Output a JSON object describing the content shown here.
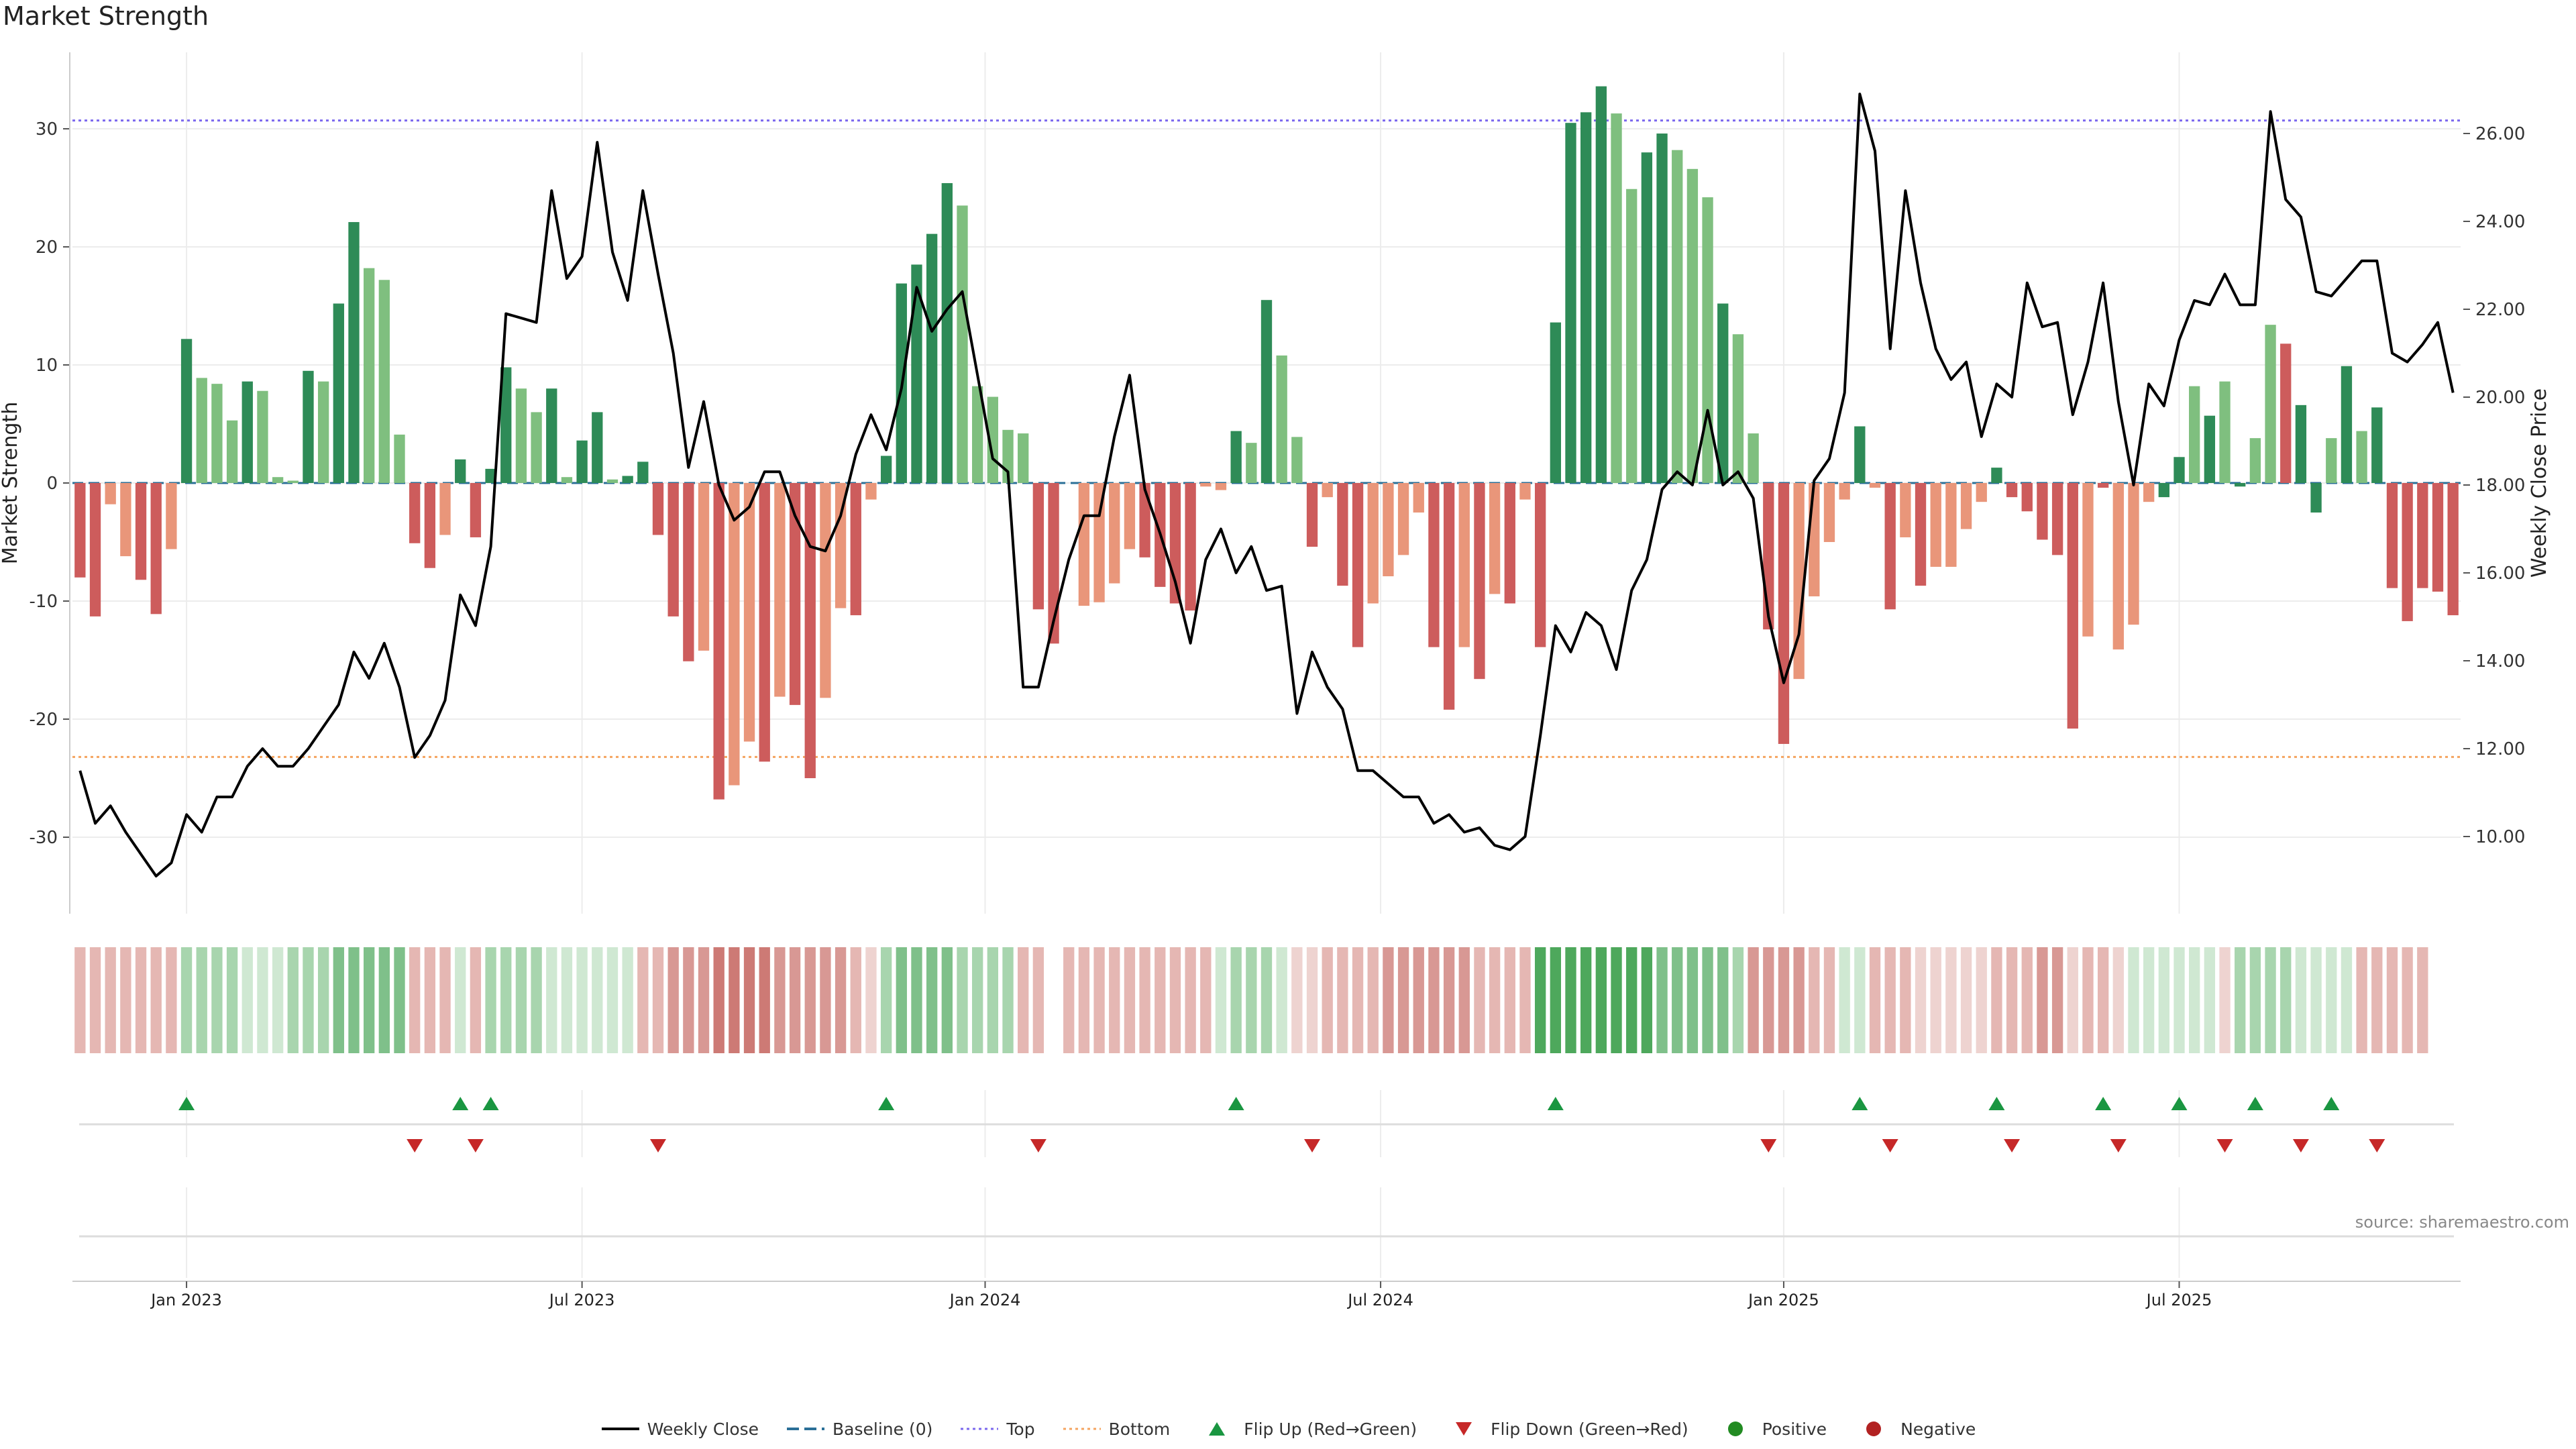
{
  "title": "Market Strength",
  "source": "source: sharemaestro.com",
  "colors": {
    "strong_pos": "#2e8b57",
    "weak_pos": "#7fbf7f",
    "strong_neg": "#cd5c5c",
    "weak_neg": "#e9967a",
    "price": "#000000",
    "baseline": "#2a6f97",
    "top": "#7b68ee",
    "bottom": "#f4a460",
    "flip_up": "#1a9641",
    "flip_down": "#c62828"
  },
  "legend": [
    {
      "label": "Weekly Close",
      "kind": "line",
      "color": "#000000"
    },
    {
      "label": "Baseline (0)",
      "kind": "dash",
      "color": "#2a6f97"
    },
    {
      "label": "Top",
      "kind": "dot",
      "color": "#7b68ee"
    },
    {
      "label": "Bottom",
      "kind": "dot",
      "color": "#f4a460"
    },
    {
      "label": "Flip Up (Red→Green)",
      "kind": "tri-up",
      "color": "#1a9641"
    },
    {
      "label": "Flip Down (Green→Red)",
      "kind": "tri-down",
      "color": "#c62828"
    },
    {
      "label": "Positive",
      "kind": "circle",
      "color": "#228b22"
    },
    {
      "label": "Negative",
      "kind": "circle",
      "color": "#b22222"
    }
  ],
  "chart_data": {
    "type": "bar+line",
    "title": "Market Strength",
    "ylabel_left": "Market Strength",
    "ylabel_right": "Weekly Close Price",
    "ylim_left": [
      -36.5,
      36.5
    ],
    "ylim_right": [
      8.3,
      27.8
    ],
    "yticks_left": [
      30,
      20,
      10,
      0,
      -10,
      -20,
      -30
    ],
    "yticks_right": [
      "26.00",
      "24.00",
      "22.00",
      "20.00",
      "18.00",
      "16.00",
      "14.00",
      "12.00",
      "10.00"
    ],
    "xticks": [
      {
        "label": "Jan 2023",
        "week": 7
      },
      {
        "label": "Jul 2023",
        "week": 33
      },
      {
        "label": "Jan 2024",
        "week": 59.5
      },
      {
        "label": "Jul 2024",
        "week": 85.5
      },
      {
        "label": "Jan 2025",
        "week": 112
      },
      {
        "label": "Jul 2025",
        "week": 138
      }
    ],
    "top_level": 30.7,
    "bottom_level": -23.2,
    "baseline": 0,
    "strength": [
      -8,
      -11.3,
      -1.8,
      -6.2,
      -8.2,
      -11.1,
      -5.6,
      12.2,
      8.9,
      8.4,
      5.3,
      8.6,
      7.8,
      0.5,
      0.2,
      9.5,
      8.6,
      15.2,
      22.1,
      18.2,
      17.2,
      4.1,
      -5.1,
      -7.2,
      -4.4,
      2,
      -4.6,
      1.2,
      9.8,
      8,
      6,
      8,
      0.5,
      3.6,
      6,
      0.3,
      0.6,
      1.8,
      -4.4,
      -11.3,
      -15.1,
      -14.2,
      -26.8,
      -25.6,
      -21.9,
      -23.6,
      -18.1,
      -18.8,
      -25,
      -18.2,
      -10.6,
      -11.2,
      -1.4,
      2.3,
      16.9,
      18.5,
      21.1,
      25.4,
      23.5,
      8.2,
      7.3,
      4.5,
      4.2,
      -10.7,
      -13.6,
      null,
      -10.4,
      -10.1,
      -8.5,
      -5.6,
      -6.3,
      -8.8,
      -10.2,
      -10.8,
      -0.3,
      -0.6,
      4.4,
      3.4,
      15.5,
      10.8,
      3.9,
      -5.4,
      -1.2,
      -8.7,
      -13.9,
      -10.2,
      -7.9,
      -6.1,
      -2.5,
      -13.9,
      -19.2,
      -13.9,
      -16.6,
      -9.4,
      -10.2,
      -1.4,
      -13.9,
      13.6,
      30.5,
      31.4,
      33.6,
      31.3,
      24.9,
      28,
      29.6,
      28.2,
      26.6,
      24.2,
      15.2,
      12.6,
      4.2,
      -12.4,
      -22.1,
      -16.6,
      -9.6,
      -5,
      -1.4,
      4.8,
      -0.4,
      -10.7,
      -4.6,
      -8.7,
      -7.1,
      -7.1,
      -3.9,
      -1.6,
      1.3,
      -1.2,
      -2.4,
      -4.8,
      -6.1,
      -20.8,
      -13,
      -0.4,
      -14.1,
      -12,
      -1.6,
      -1.2,
      2.2,
      8.2,
      5.7,
      8.6,
      -0.3,
      3.8,
      13.4,
      11.8,
      6.6,
      -2.5,
      3.8,
      9.9,
      4.4,
      6.4,
      -8.9,
      -11.7,
      -8.9,
      -9.2,
      -11.2
    ],
    "strength_class": [
      "N",
      "N",
      "W",
      "W",
      "N",
      "N",
      "W",
      "S",
      "W",
      "W",
      "W",
      "S",
      "W",
      "W",
      "W",
      "S",
      "W",
      "S",
      "S",
      "W",
      "W",
      "W",
      "N",
      "N",
      "W",
      "S",
      "N",
      "S",
      "S",
      "W",
      "W",
      "S",
      "W",
      "S",
      "S",
      "W",
      "S",
      "S",
      "N",
      "N",
      "N",
      "W",
      "N",
      "W",
      "W",
      "N",
      "W",
      "N",
      "N",
      "W",
      "W",
      "N",
      "W",
      "S",
      "S",
      "S",
      "S",
      "S",
      "W",
      "W",
      "W",
      "W",
      "W",
      "N",
      "N",
      "X",
      "W",
      "W",
      "W",
      "W",
      "N",
      "N",
      "N",
      "N",
      "W",
      "W",
      "S",
      "W",
      "S",
      "W",
      "W",
      "N",
      "W",
      "N",
      "N",
      "W",
      "W",
      "W",
      "W",
      "N",
      "N",
      "W",
      "N",
      "W",
      "N",
      "W",
      "N",
      "S",
      "S",
      "S",
      "S",
      "W",
      "W",
      "S",
      "S",
      "W",
      "W",
      "W",
      "S",
      "W",
      "W",
      "N",
      "N",
      "W",
      "W",
      "W",
      "W",
      "S",
      "W",
      "N",
      "W",
      "N",
      "W",
      "W",
      "W",
      "W",
      "S",
      "N",
      "N",
      "N",
      "N",
      "N",
      "W",
      "N",
      "W",
      "W",
      "W",
      "S",
      "S",
      "W",
      "S",
      "W",
      "S",
      "W",
      "W",
      "N",
      "S",
      "S",
      "W",
      "S",
      "W",
      "S",
      "N",
      "N",
      "N",
      "N",
      "N"
    ],
    "price": [
      11.5,
      10.3,
      10.7,
      10.1,
      9.6,
      9.1,
      9.4,
      10.5,
      10.1,
      10.9,
      10.9,
      11.6,
      12,
      11.6,
      11.6,
      12,
      12.5,
      13,
      14.2,
      13.6,
      14.4,
      13.4,
      11.8,
      12.3,
      13.1,
      15.5,
      14.8,
      16.6,
      21.9,
      21.8,
      21.7,
      24.7,
      22.7,
      23.2,
      25.8,
      23.3,
      22.2,
      24.7,
      22.8,
      21,
      18.4,
      19.9,
      18,
      17.2,
      17.5,
      18.3,
      18.3,
      17.3,
      16.6,
      16.5,
      17.3,
      18.7,
      19.6,
      18.8,
      20.2,
      22.5,
      21.5,
      22,
      22.4,
      20.5,
      18.6,
      18.3,
      13.4,
      13.4,
      14.9,
      16.3,
      17.3,
      17.3,
      19.1,
      20.5,
      17.9,
      16.9,
      15.8,
      14.4,
      16.3,
      17,
      16,
      16.6,
      15.6,
      15.7,
      12.8,
      14.2,
      13.4,
      12.9,
      11.5,
      11.5,
      11.2,
      10.9,
      10.9,
      10.3,
      10.5,
      10.1,
      10.2,
      9.8,
      9.7,
      10,
      12.3,
      14.8,
      14.2,
      15.1,
      14.8,
      13.8,
      15.6,
      16.3,
      17.9,
      18.3,
      18,
      19.7,
      18,
      18.3,
      17.7,
      15,
      13.5,
      14.6,
      18.1,
      18.6,
      20.1,
      26.9,
      25.6,
      21.1,
      24.7,
      22.6,
      21.1,
      20.4,
      20.8,
      19.1,
      20.3,
      20,
      22.6,
      21.6,
      21.7,
      19.6,
      20.8,
      22.6,
      19.9,
      18,
      20.3,
      19.8,
      21.3,
      22.2,
      22.1,
      22.8,
      22.1,
      22.1,
      26.5,
      24.5,
      24.1,
      22.4,
      22.3,
      22.7,
      23.1,
      23.1,
      21,
      20.8,
      21.2,
      21.7,
      20.1
    ],
    "flip_up": [
      7,
      25,
      27,
      53,
      76,
      97,
      117,
      126,
      133,
      138,
      143,
      148
    ],
    "flip_down": [
      22,
      26,
      38,
      63,
      81,
      111,
      119,
      127,
      134,
      141,
      146,
      151
    ],
    "heat": [
      -2,
      -2,
      -2,
      -2,
      -2,
      -2,
      -2,
      2,
      2,
      2,
      2,
      1,
      1,
      1,
      2,
      2,
      2,
      3,
      3,
      3,
      3,
      3,
      -2,
      -2,
      -2,
      1,
      -2,
      2,
      2,
      2,
      2,
      1,
      1,
      1,
      1,
      1,
      1,
      -2,
      -2,
      -3,
      -3,
      -3,
      -4,
      -4,
      -4,
      -4,
      -3,
      -3,
      -3,
      -3,
      -3,
      -2,
      -1,
      2,
      3,
      3,
      3,
      3,
      2,
      2,
      2,
      2,
      -2,
      -2,
      null,
      -2,
      -2,
      -2,
      -2,
      -2,
      -2,
      -2,
      -2,
      -2,
      -2,
      1,
      2,
      2,
      2,
      1,
      -1,
      -1,
      -2,
      -2,
      -2,
      -2,
      -3,
      -3,
      -3,
      -3,
      -3,
      -3,
      -2,
      -2,
      -2,
      -2,
      4,
      4,
      4,
      4,
      4,
      4,
      4,
      4,
      3,
      3,
      3,
      3,
      3,
      2,
      -3,
      -3,
      -3,
      -3,
      -2,
      -2,
      1,
      1,
      -2,
      -2,
      -2,
      -1,
      -1,
      -1,
      -1,
      -1,
      -2,
      -2,
      -2,
      -3,
      -3,
      -1,
      -2,
      -2,
      -1,
      1,
      1,
      1,
      1,
      1,
      1,
      -1,
      2,
      2,
      2,
      2,
      1,
      1,
      1,
      1,
      -2,
      -2,
      -2,
      -2,
      -2
    ]
  }
}
